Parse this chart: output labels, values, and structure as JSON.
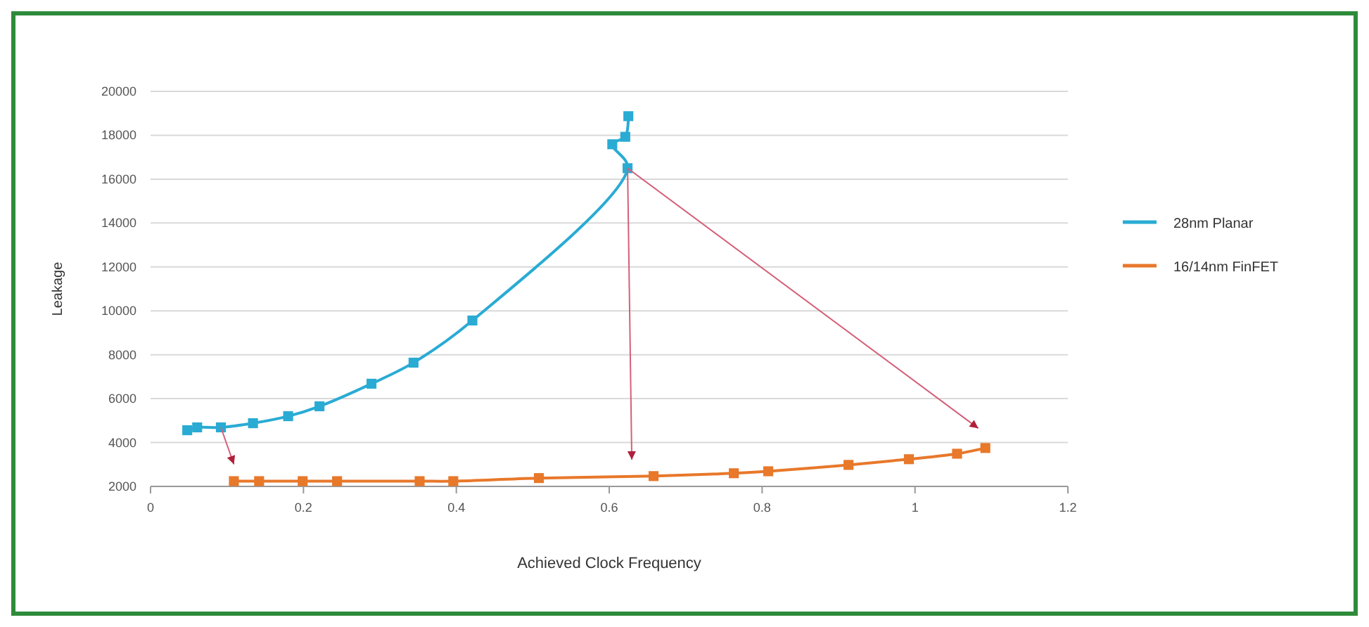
{
  "chart_data": {
    "type": "line",
    "xlabel": "Achieved Clock Frequency",
    "ylabel": "Leakage",
    "xlim": [
      0,
      1.2
    ],
    "xticks": [
      0,
      0.2,
      0.4,
      0.6,
      0.8,
      1,
      1.2
    ],
    "ylim": [
      2000,
      20000
    ],
    "yticks": [
      2000,
      4000,
      6000,
      8000,
      10000,
      12000,
      14000,
      16000,
      18000,
      20000
    ],
    "grid": "y",
    "legend": "right",
    "marker": "square",
    "line_style": "solid",
    "series": [
      {
        "name": "28nm Planar",
        "color": "#29abd4",
        "x": [
          0.048,
          0.061,
          0.092,
          0.134,
          0.18,
          0.221,
          0.289,
          0.344,
          0.421,
          0.624,
          0.604,
          0.621,
          0.625
        ],
        "values": [
          4560,
          4690,
          4690,
          4880,
          5200,
          5650,
          6680,
          7640,
          9560,
          16500,
          17590,
          17930,
          18870
        ]
      },
      {
        "name": "16/14nm FinFET",
        "color": "#e8782a",
        "x": [
          0.109,
          0.142,
          0.199,
          0.244,
          0.352,
          0.396,
          0.508,
          0.658,
          0.763,
          0.808,
          0.913,
          0.992,
          1.055,
          1.092
        ],
        "values": [
          2240,
          2240,
          2240,
          2240,
          2240,
          2240,
          2380,
          2470,
          2600,
          2690,
          2980,
          3240,
          3490,
          3750
        ]
      }
    ]
  }
}
